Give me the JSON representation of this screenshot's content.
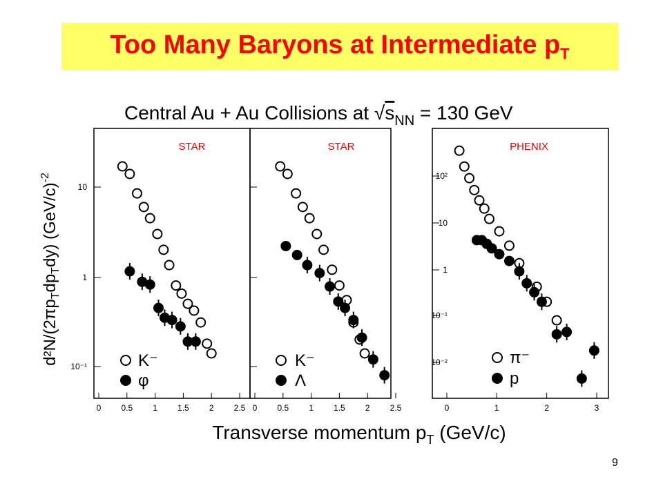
{
  "slide": {
    "title": "Too Many Baryons at Intermediate p",
    "title_sub": "T",
    "number": "9",
    "title_color": "#ff0000",
    "banner_color": "#ffff66"
  },
  "figure": {
    "header_prefix": "Central Au + Au Collisions at ",
    "header_sqrt": "√",
    "header_s": "s",
    "header_sub": "NN",
    "header_suffix": " = 130 GeV",
    "xlabel": "Transverse momentum p",
    "xlabel_sub": "T",
    "xlabel_suffix": " (GeV/c)",
    "ylabel": "d²N/(2πp",
    "ylabel_parts": [
      "T",
      "dp",
      "T",
      "dy) (GeV/c)",
      "-2"
    ],
    "experiment_color": "#e00000"
  },
  "chart_data": [
    {
      "type": "scatter",
      "panel": "left",
      "experiment": "STAR",
      "y_scale": "log",
      "xlim": [
        0,
        2.5
      ],
      "ylim": [
        0.08,
        40
      ],
      "x_ticks": [
        "0",
        "0.5",
        "1",
        "1.5",
        "2",
        "2.5"
      ],
      "y_ticks": [
        "10⁻¹",
        "1",
        "10"
      ],
      "series": [
        {
          "name": "K⁻",
          "marker": "open-circle",
          "x": [
            0.42,
            0.55,
            0.68,
            0.8,
            0.91,
            1.04,
            1.15,
            1.25,
            1.37,
            1.47,
            1.58,
            1.69,
            1.81,
            1.92,
            2.0
          ],
          "y": [
            17,
            14,
            8.5,
            6.0,
            4.5,
            3.0,
            2.0,
            1.35,
            0.8,
            0.65,
            0.5,
            0.42,
            0.31,
            0.18,
            0.14
          ]
        },
        {
          "name": "φ",
          "marker": "filled-circle",
          "x": [
            0.55,
            0.77,
            0.91,
            1.06,
            1.17,
            1.3,
            1.45,
            1.58,
            1.72
          ],
          "y": [
            1.15,
            0.88,
            0.82,
            0.45,
            0.35,
            0.33,
            0.28,
            0.19,
            0.19
          ]
        }
      ]
    },
    {
      "type": "scatter",
      "panel": "middle",
      "experiment": "STAR",
      "y_scale": "log",
      "xlim": [
        0,
        2.5
      ],
      "ylim": [
        0.08,
        40
      ],
      "x_ticks": [
        "0",
        "0.5",
        "1",
        "1.5",
        "2",
        "2.5"
      ],
      "series": [
        {
          "name": "K⁻",
          "marker": "open-circle",
          "x": [
            0.45,
            0.58,
            0.73,
            0.85,
            0.97,
            1.1,
            1.22,
            1.37,
            1.5,
            1.63,
            1.75,
            1.86,
            1.95
          ],
          "y": [
            17,
            14,
            8.5,
            6.0,
            4.5,
            3.0,
            2.0,
            1.2,
            0.8,
            0.55,
            0.31,
            0.2,
            0.14
          ]
        },
        {
          "name": "Λ",
          "marker": "filled-circle",
          "x": [
            0.55,
            0.75,
            0.93,
            1.15,
            1.33,
            1.48,
            1.6,
            1.75,
            1.9,
            2.1,
            2.3
          ],
          "y": [
            2.2,
            1.75,
            1.35,
            1.1,
            0.78,
            0.53,
            0.45,
            0.33,
            0.21,
            0.12,
            0.08
          ]
        }
      ]
    },
    {
      "type": "scatter",
      "panel": "right",
      "experiment": "PHENIX",
      "y_scale": "log",
      "xlim": [
        0,
        3
      ],
      "ylim": [
        0.002,
        600
      ],
      "x_ticks": [
        "0",
        "1",
        "2",
        "3"
      ],
      "y_ticks": [
        "10⁻²",
        "10⁻¹",
        "1",
        "10",
        "10²"
      ],
      "series": [
        {
          "name": "π⁻",
          "marker": "open-circle",
          "x": [
            0.25,
            0.35,
            0.45,
            0.55,
            0.65,
            0.75,
            0.85,
            1.05,
            1.25,
            1.45,
            1.8,
            2.0,
            2.2
          ],
          "y": [
            350,
            160,
            90,
            50,
            30,
            20,
            12,
            6.5,
            3.2,
            1.35,
            0.42,
            0.2,
            0.08
          ]
        },
        {
          "name": "p",
          "marker": "filled-circle",
          "x": [
            0.6,
            0.7,
            0.8,
            0.9,
            1.05,
            1.25,
            1.45,
            1.6,
            1.75,
            1.9,
            2.2,
            2.4,
            2.7,
            2.95
          ],
          "y": [
            4.2,
            4.2,
            3.5,
            2.8,
            2.1,
            1.5,
            0.9,
            0.5,
            0.32,
            0.2,
            0.04,
            0.045,
            0.0045,
            0.018
          ]
        }
      ]
    }
  ]
}
